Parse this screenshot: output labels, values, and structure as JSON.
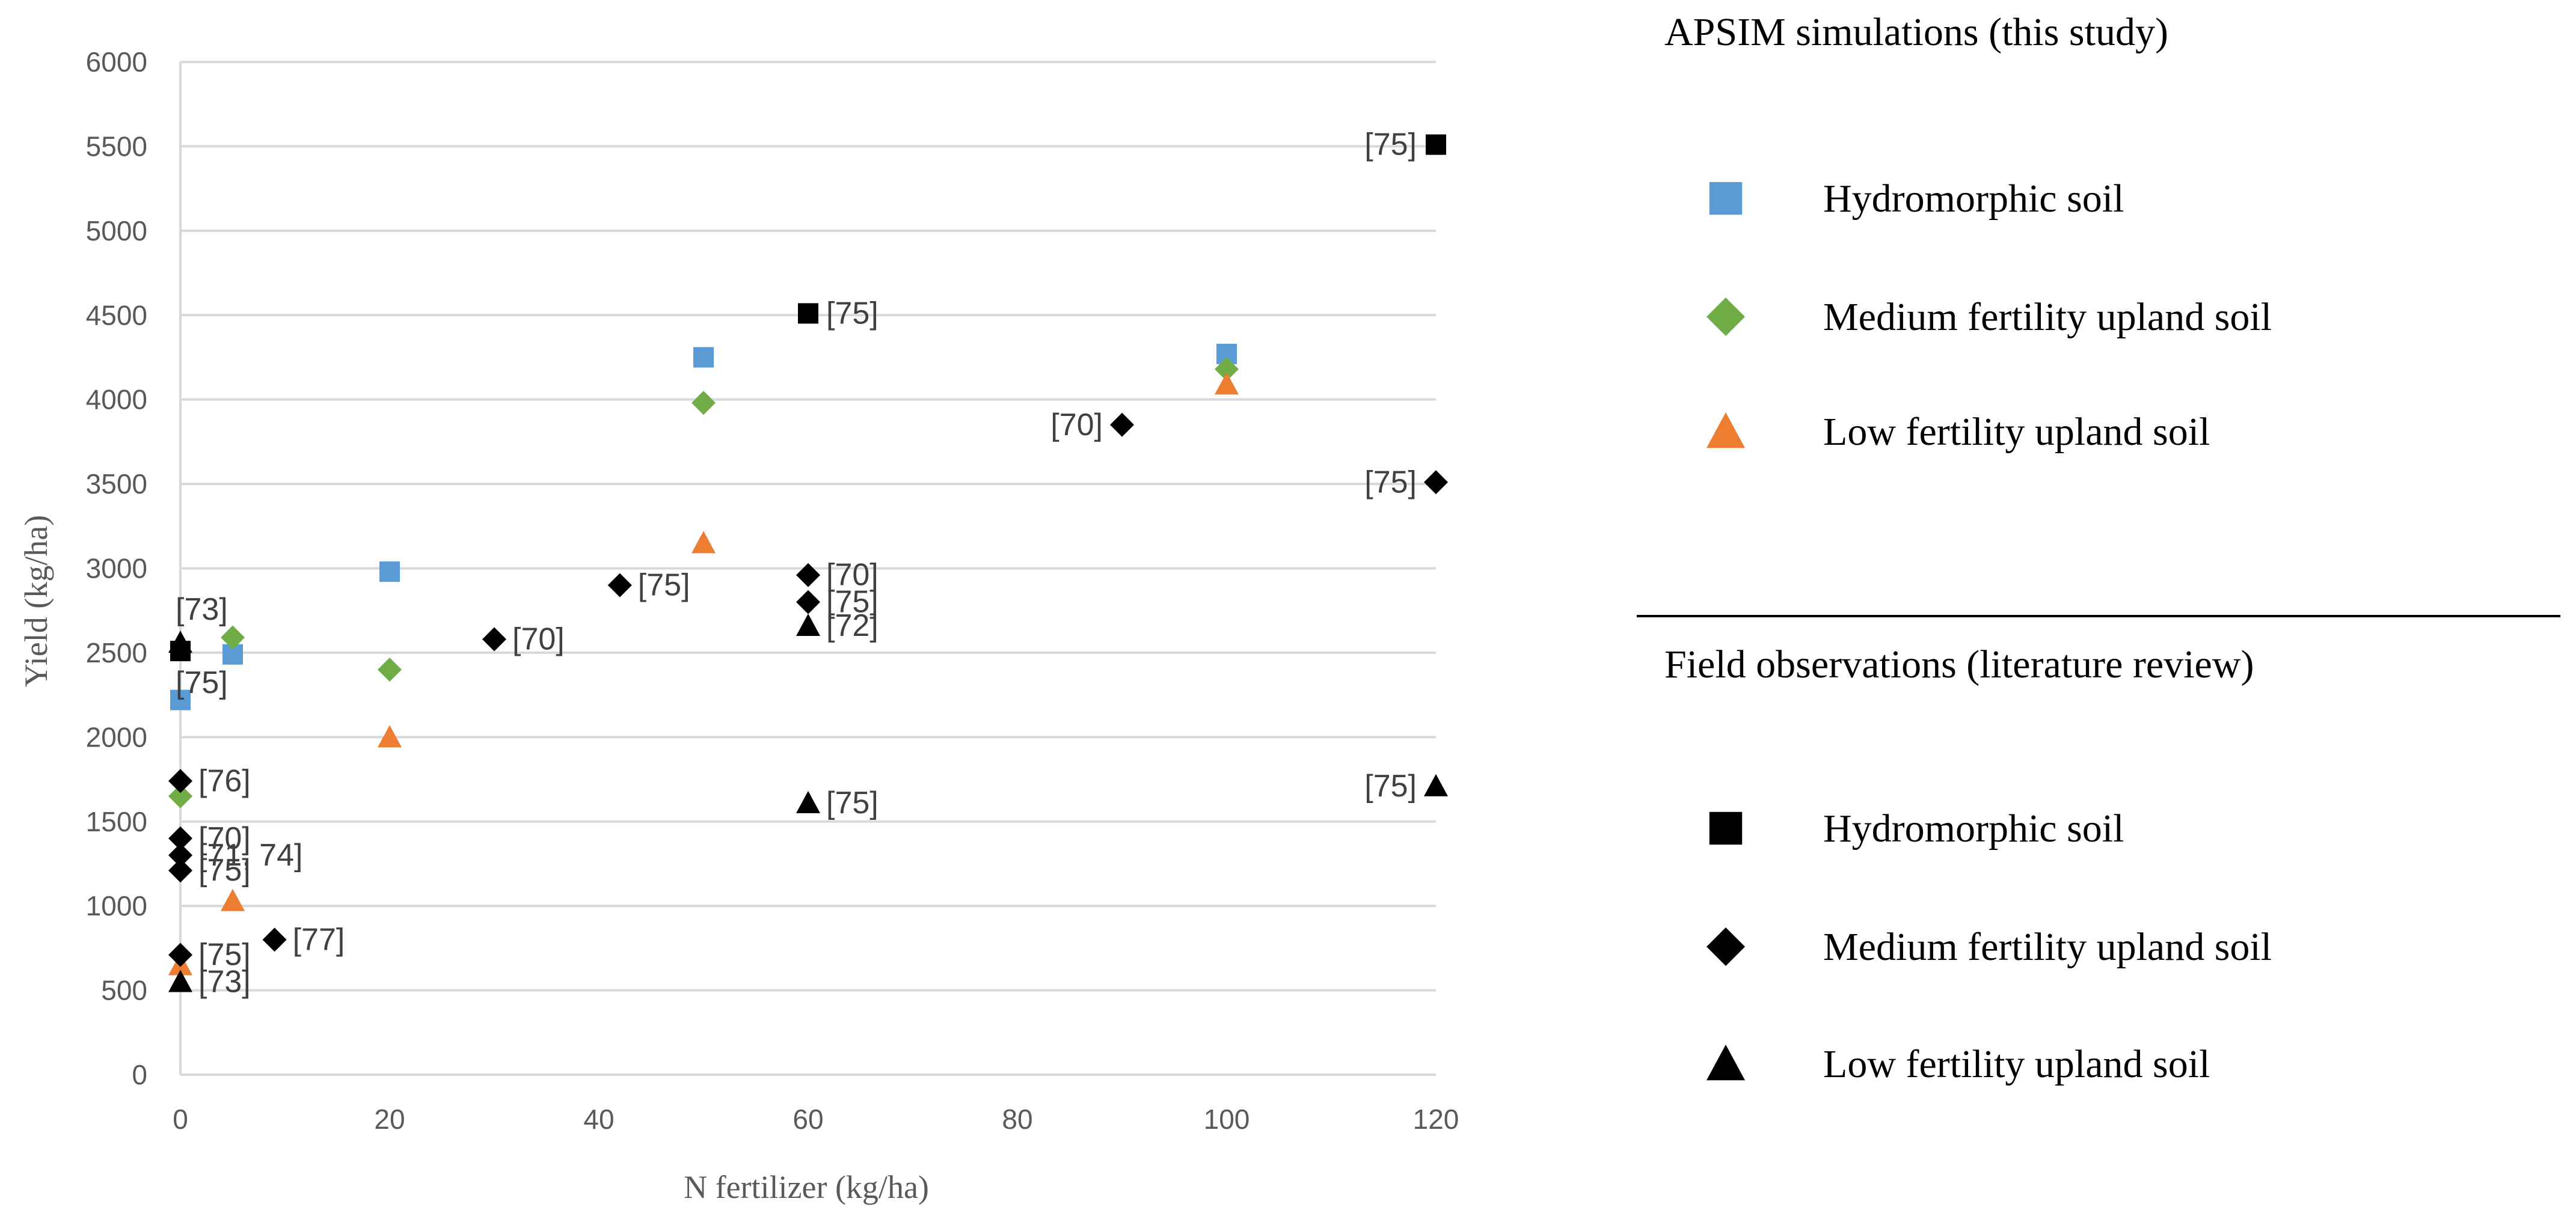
{
  "chart_data": {
    "type": "scatter",
    "title": "",
    "xlabel": "N fertilizer (kg/ha)",
    "ylabel": "Yield (kg/ha)",
    "xlim": [
      0,
      120
    ],
    "ylim": [
      0,
      6000
    ],
    "xticks": [
      0,
      20,
      40,
      60,
      80,
      100,
      120
    ],
    "yticks": [
      0,
      500,
      1000,
      1500,
      2000,
      2500,
      3000,
      3500,
      4000,
      4500,
      5000,
      5500,
      6000
    ],
    "grid": "horizontal",
    "legend_groups": [
      {
        "heading": "APSIM simulations (this study)",
        "entries": [
          {
            "label": "Hydromorphic soil",
            "marker": "square",
            "color": "#5B9BD5"
          },
          {
            "label": "Medium fertility upland soil",
            "marker": "diamond",
            "color": "#70AD47"
          },
          {
            "label": "Low fertility upland soil",
            "marker": "triangle",
            "color": "#ED7D31"
          }
        ]
      },
      {
        "heading": "Field observations (literature review)",
        "entries": [
          {
            "label": "Hydromorphic soil",
            "marker": "square",
            "color": "#000000"
          },
          {
            "label": "Medium fertility upland soil",
            "marker": "diamond",
            "color": "#000000"
          },
          {
            "label": "Low fertility upland soil",
            "marker": "triangle",
            "color": "#000000"
          }
        ]
      }
    ],
    "series": [
      {
        "name": "APSIM Hydromorphic soil",
        "marker": "square",
        "color": "#5B9BD5",
        "points": [
          {
            "x": 0,
            "y": 2220
          },
          {
            "x": 5,
            "y": 2490
          },
          {
            "x": 20,
            "y": 2980
          },
          {
            "x": 50,
            "y": 4250
          },
          {
            "x": 100,
            "y": 4270
          }
        ]
      },
      {
        "name": "APSIM Medium fertility upland soil",
        "marker": "diamond",
        "color": "#70AD47",
        "points": [
          {
            "x": 0,
            "y": 1650
          },
          {
            "x": 5,
            "y": 2590
          },
          {
            "x": 20,
            "y": 2400
          },
          {
            "x": 50,
            "y": 3980
          },
          {
            "x": 100,
            "y": 4180
          }
        ]
      },
      {
        "name": "APSIM Low fertility upland soil",
        "marker": "triangle",
        "color": "#ED7D31",
        "points": [
          {
            "x": 0,
            "y": 650
          },
          {
            "x": 5,
            "y": 1030
          },
          {
            "x": 20,
            "y": 2000
          },
          {
            "x": 50,
            "y": 3150
          },
          {
            "x": 100,
            "y": 4090
          }
        ]
      },
      {
        "name": "Observed Hydromorphic soil",
        "marker": "square",
        "color": "#000000",
        "points": [
          {
            "x": 0,
            "y": 2510,
            "label": "[75]",
            "pos": "below"
          },
          {
            "x": 60,
            "y": 4510,
            "label": "[75]",
            "pos": "right"
          },
          {
            "x": 120,
            "y": 5510,
            "label": "[75]",
            "pos": "left"
          }
        ]
      },
      {
        "name": "Observed Medium fertility upland soil",
        "marker": "diamond",
        "color": "#000000",
        "points": [
          {
            "x": 0,
            "y": 1740,
            "label": "[76]",
            "pos": "right"
          },
          {
            "x": 0,
            "y": 1400,
            "label": "[70]",
            "pos": "right"
          },
          {
            "x": 0,
            "y": 1300,
            "label": "[71, 74]",
            "pos": "right"
          },
          {
            "x": 0,
            "y": 1210,
            "label": "[75]",
            "pos": "right"
          },
          {
            "x": 0,
            "y": 710,
            "label": "[75]",
            "pos": "right"
          },
          {
            "x": 9,
            "y": 800,
            "label": "[77]",
            "pos": "right"
          },
          {
            "x": 30,
            "y": 2580,
            "label": "[70]",
            "pos": "right"
          },
          {
            "x": 42,
            "y": 2900,
            "label": "[75]",
            "pos": "right"
          },
          {
            "x": 60,
            "y": 2960,
            "label": "[70]",
            "pos": "right"
          },
          {
            "x": 60,
            "y": 2800,
            "label": "[75]",
            "pos": "right"
          },
          {
            "x": 90,
            "y": 3850,
            "label": "[70]",
            "pos": "left"
          },
          {
            "x": 120,
            "y": 3510,
            "label": "[75]",
            "pos": "left"
          }
        ]
      },
      {
        "name": "Observed Low fertility upland soil",
        "marker": "triangle",
        "color": "#000000",
        "points": [
          {
            "x": 0,
            "y": 2560,
            "label": "[73]",
            "pos": "above"
          },
          {
            "x": 0,
            "y": 550,
            "label": "[73]",
            "pos": "right"
          },
          {
            "x": 60,
            "y": 2660,
            "label": "[72]",
            "pos": "right"
          },
          {
            "x": 60,
            "y": 1610,
            "label": "[75]",
            "pos": "right"
          },
          {
            "x": 120,
            "y": 1710,
            "label": "[75]",
            "pos": "left"
          }
        ]
      }
    ]
  }
}
